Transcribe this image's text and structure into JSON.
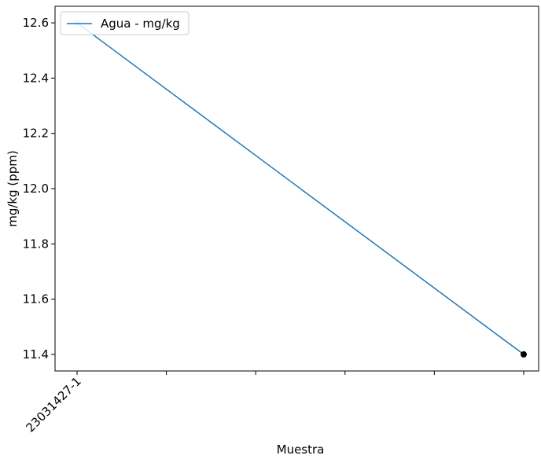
{
  "chart_data": {
    "type": "line",
    "xlabel": "Muestra",
    "ylabel": "mg/kg (ppm)",
    "x_tick_labels": [
      "23031427-1",
      "",
      "",
      "",
      "",
      ""
    ],
    "ylim": [
      11.34,
      12.66
    ],
    "y_ticks": [
      11.4,
      11.6,
      11.8,
      12.0,
      12.2,
      12.4,
      12.6
    ],
    "y_tick_labels": [
      "11.4",
      "11.6",
      "11.8",
      "12.0",
      "12.2",
      "12.4",
      "12.6"
    ],
    "grid": false,
    "legend_position": "top-left",
    "series": [
      {
        "name": "Agua - mg/kg",
        "color": "#1f77b4",
        "points": [
          {
            "x_index": 0,
            "y": 12.6
          },
          {
            "x_index": 5,
            "y": 11.4
          }
        ]
      }
    ],
    "highlight_points": [
      {
        "x_index": 0,
        "y": 12.6,
        "color": "#a6c8e0"
      },
      {
        "x_index": 5,
        "y": 11.4,
        "color": "#000000"
      }
    ]
  }
}
